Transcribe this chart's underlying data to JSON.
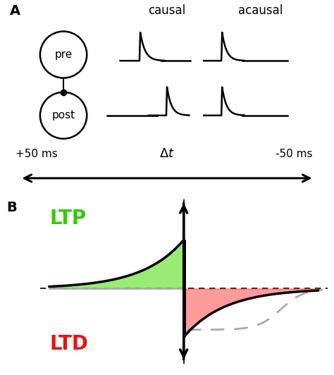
{
  "title_A": "A",
  "title_B": "B",
  "label_causal": "causal",
  "label_acausal": "acausal",
  "label_pre": "pre",
  "label_post": "post",
  "label_plus50": "+50 ms",
  "label_delta_t": "Δt",
  "label_minus50": "-50 ms",
  "label_LTP": "LTP",
  "label_LTD": "LTD",
  "color_LTP": "#33cc00",
  "color_LTD": "#ee1111",
  "color_green_fill": "#44dd00",
  "color_red_fill": "#ff2222",
  "color_gray_dashed": "#aaaaaa",
  "color_black": "#000000",
  "color_white": "#ffffff",
  "background_color": "#ffffff",
  "fig_width": 4.74,
  "fig_height": 5.32,
  "dpi": 100
}
